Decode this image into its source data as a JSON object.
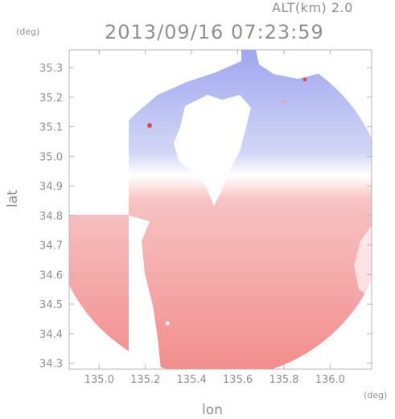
{
  "header": {
    "altitude_label": "ALT(km) 2.0",
    "timestamp": "2013/09/16 07:23:59"
  },
  "chart_data": {
    "type": "heatmap",
    "title": "2013/09/16 07:23:59",
    "subtitle": "ALT(km) 2.0",
    "xlabel": "lon",
    "ylabel": "lat",
    "x_unit": "(deg)",
    "y_unit": "(deg)",
    "xlim": [
      134.87,
      136.18
    ],
    "ylim": [
      34.28,
      35.36
    ],
    "xticks": [
      135.0,
      135.2,
      135.4,
      135.6,
      135.8,
      136.0
    ],
    "xtick_labels": [
      "135.0",
      "135.2",
      "135.4",
      "135.6",
      "135.8",
      "136.0"
    ],
    "yticks": [
      34.3,
      34.4,
      34.5,
      34.6,
      34.7,
      34.8,
      34.9,
      35.0,
      35.1,
      35.2,
      35.3
    ],
    "ytick_labels": [
      "34.3",
      "34.4",
      "34.5",
      "34.6",
      "34.7",
      "34.8",
      "34.9",
      "35.0",
      "35.1",
      "35.2",
      "35.3"
    ],
    "radar_center": {
      "lon": 135.52,
      "lat": 34.82
    },
    "colors": {
      "approaching": "#9aa3ee",
      "receding": "#f28a8a",
      "neutral": "#ffffff",
      "frame": "#b4b4b4",
      "text": "#8f8f8f"
    },
    "grid": false
  }
}
